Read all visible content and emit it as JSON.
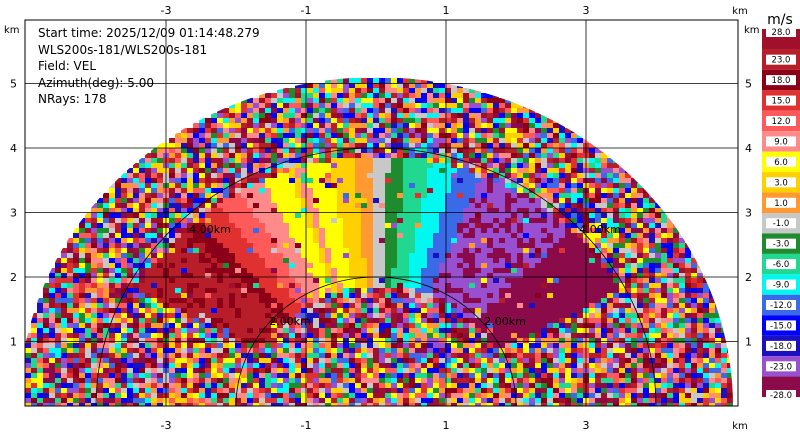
{
  "info": {
    "start_time": "Start time: 2025/12/09 01:14:48.279",
    "instrument": "WLS200s-181/WLS200s-181",
    "field": "Field: VEL",
    "azimuth": "Azimuth(deg): 5.00",
    "nrays": "NRays: 178"
  },
  "axes": {
    "unit": "km",
    "x_ticks": [
      "-3",
      "-1",
      "1",
      "3"
    ],
    "y_ticks": [
      "1",
      "2",
      "3",
      "4",
      "5"
    ]
  },
  "range_rings": [
    "2.00km",
    "4.00km",
    "2.00km",
    "4.00km"
  ],
  "colorbar": {
    "unit": "m/s",
    "labels": [
      "28.0",
      "23.0",
      "18.0",
      "15.0",
      "12.0",
      "9.0",
      "6.0",
      "3.0",
      "1.0",
      "-1.0",
      "-3.0",
      "-6.0",
      "-9.0",
      "-12.0",
      "-15.0",
      "-18.0",
      "-23.0",
      "-28.0"
    ],
    "colors": [
      "#a0102a",
      "#b81e2a",
      "#8b0018",
      "#e03030",
      "#ff5a5a",
      "#ff8a8a",
      "#ffff00",
      "#ffd000",
      "#ff9930",
      "#c8c8c8",
      "#1e8c2e",
      "#20d890",
      "#00f8f0",
      "#3a6ae8",
      "#0000ff",
      "#1a10c0",
      "#9850d0",
      "#8a0a4a"
    ]
  },
  "chart_data": {
    "type": "heatmap",
    "title": "",
    "field": "VEL",
    "units": "m/s",
    "xlabel": "km",
    "ylabel": "km",
    "xlim": [
      -4.8,
      4.8
    ],
    "ylim": [
      0,
      6
    ],
    "x_ticks": [
      -3,
      -1,
      1,
      3
    ],
    "y_ticks": [
      1,
      2,
      3,
      4,
      5
    ],
    "max_range_km": 5.1,
    "range_ring_labels": [
      "2.00km",
      "4.00km"
    ],
    "color_levels": [
      28.0,
      23.0,
      18.0,
      15.0,
      12.0,
      9.0,
      6.0,
      3.0,
      1.0,
      -1.0,
      -3.0,
      -6.0,
      -9.0,
      -12.0,
      -15.0,
      -18.0,
      -23.0,
      -28.0
    ],
    "grid": true
  }
}
